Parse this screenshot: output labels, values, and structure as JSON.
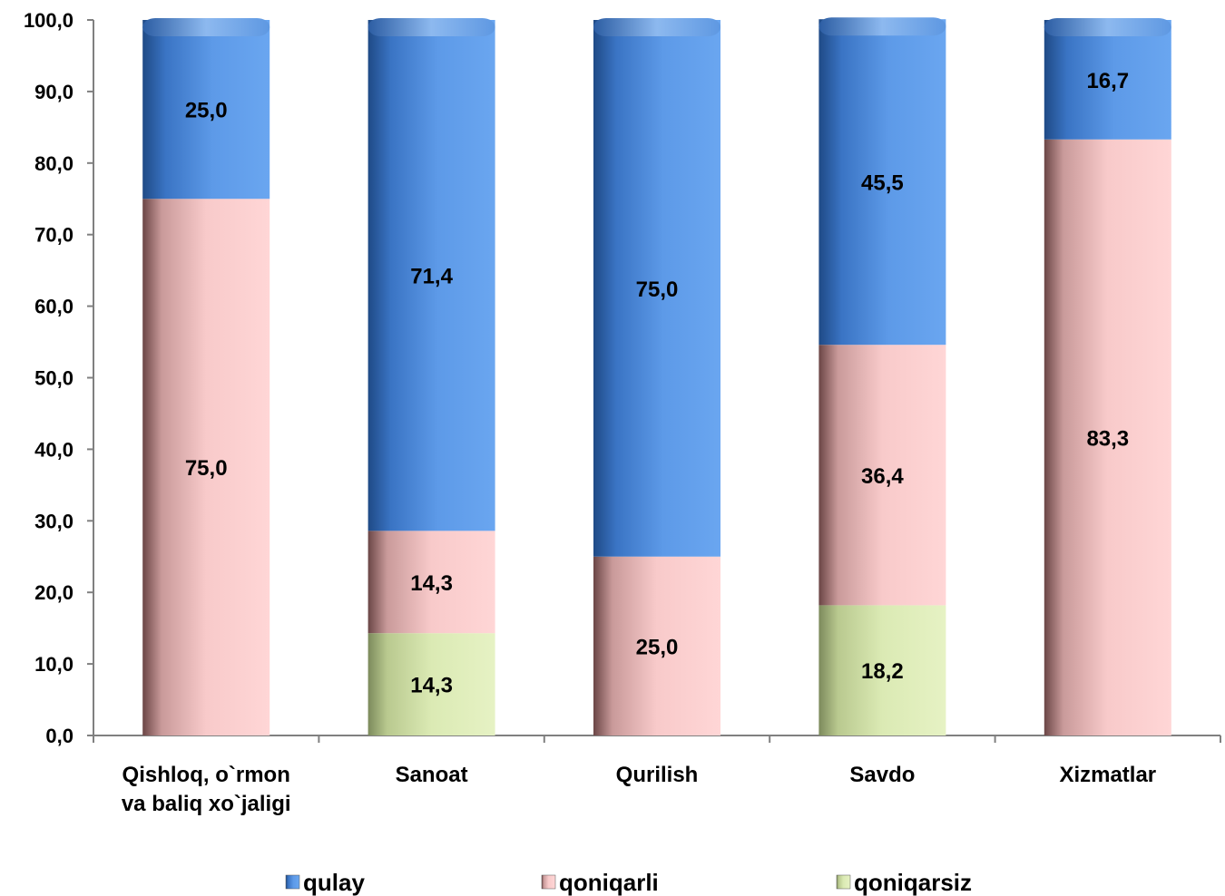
{
  "chart_data": {
    "type": "bar",
    "stacked": true,
    "categories": [
      [
        "Qishloq, o`rmon",
        "va baliq xo`jaligi"
      ],
      [
        "Sanoat"
      ],
      [
        "Qurilish"
      ],
      [
        "Savdo"
      ],
      [
        "Xizmatlar"
      ]
    ],
    "series": [
      {
        "name": "qoniqarsiz",
        "color": "#d8e8b0",
        "values": [
          0,
          14.3,
          0,
          18.2,
          0
        ],
        "labels": [
          "",
          "14,3",
          "",
          "18,2",
          ""
        ]
      },
      {
        "name": "qoniqarli",
        "color": "#f6c4c4",
        "values": [
          75.0,
          14.3,
          25.0,
          36.4,
          83.3
        ],
        "labels": [
          "75,0",
          "14,3",
          "25,0",
          "36,4",
          "83,3"
        ]
      },
      {
        "name": "qulay",
        "color": "#4f8fdc",
        "values": [
          25.0,
          71.4,
          75.0,
          45.5,
          16.7
        ],
        "labels": [
          "25,0",
          "71,4",
          "75,0",
          "45,5",
          "16,7"
        ]
      }
    ],
    "legend_order": [
      "qulay",
      "qoniqarli",
      "qoniqarsiz"
    ],
    "legend_position": "bottom",
    "ylim": [
      0,
      100
    ],
    "yticks": [
      "0,0",
      "10,0",
      "20,0",
      "30,0",
      "40,0",
      "50,0",
      "60,0",
      "70,0",
      "80,0",
      "90,0",
      "100,0"
    ],
    "grid": false,
    "title": "",
    "xlabel": "",
    "ylabel": ""
  }
}
